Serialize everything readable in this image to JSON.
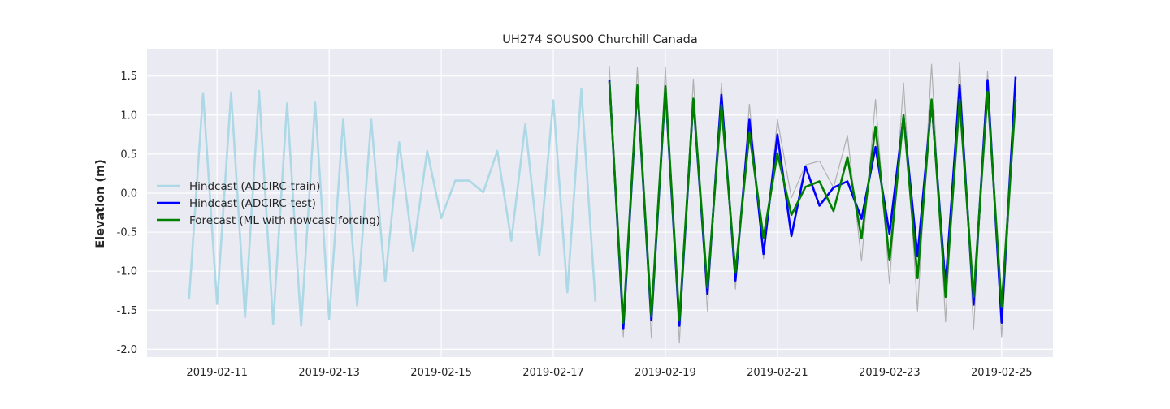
{
  "chart_data": {
    "type": "line",
    "title": "UH274 SOUS00 Churchill Canada",
    "xlabel": "",
    "ylabel": "Elevation (m)",
    "xlim": [
      "2019-02-09T18:00",
      "2019-02-25T22:00"
    ],
    "ylim": [
      -2.1,
      1.85
    ],
    "x_ticks": [
      "2019-02-11",
      "2019-02-13",
      "2019-02-15",
      "2019-02-17",
      "2019-02-19",
      "2019-02-21",
      "2019-02-23",
      "2019-02-25"
    ],
    "y_ticks": [
      -2.0,
      -1.5,
      -1.0,
      -0.5,
      0.0,
      0.5,
      1.0,
      1.5
    ],
    "grid": true,
    "legend_position": "center-left",
    "colors": {
      "background": "#eaeaf2",
      "grid": "#ffffff",
      "train": "#add8e6",
      "test": "#0000ff",
      "forecast": "#008000",
      "observed": "#b0b0b0"
    },
    "series": [
      {
        "key": "train",
        "name": "Hindcast (ADCIRC-train)",
        "color": "#add8e6",
        "x": [
          "2019-02-10T12:00",
          "2019-02-10T18:00",
          "2019-02-11T00:00",
          "2019-02-11T06:00",
          "2019-02-11T12:00",
          "2019-02-11T18:00",
          "2019-02-12T00:00",
          "2019-02-12T06:00",
          "2019-02-12T12:00",
          "2019-02-12T18:00",
          "2019-02-13T00:00",
          "2019-02-13T06:00",
          "2019-02-13T12:00",
          "2019-02-13T18:00",
          "2019-02-14T00:00",
          "2019-02-14T06:00",
          "2019-02-14T12:00",
          "2019-02-14T18:00",
          "2019-02-15T00:00",
          "2019-02-15T06:00",
          "2019-02-15T12:00",
          "2019-02-15T18:00",
          "2019-02-16T00:00",
          "2019-02-16T06:00",
          "2019-02-16T12:00",
          "2019-02-16T18:00",
          "2019-02-17T00:00",
          "2019-02-17T06:00",
          "2019-02-17T12:00",
          "2019-02-17T18:00"
        ],
        "values": [
          -1.36,
          1.28,
          -1.42,
          1.29,
          -1.59,
          1.31,
          -1.68,
          1.15,
          -1.7,
          1.16,
          -1.61,
          0.94,
          -1.44,
          0.94,
          -1.13,
          0.65,
          -0.74,
          0.54,
          -0.32,
          0.16,
          0.16,
          0.01,
          0.54,
          -0.61,
          0.88,
          -0.8,
          1.19,
          -1.27,
          1.33,
          -1.39
        ]
      },
      {
        "key": "observed",
        "name": "",
        "color": "#b0b0b0",
        "x": [
          "2019-02-18T00:00",
          "2019-02-18T06:00",
          "2019-02-18T12:00",
          "2019-02-18T18:00",
          "2019-02-19T00:00",
          "2019-02-19T06:00",
          "2019-02-19T12:00",
          "2019-02-19T18:00",
          "2019-02-20T00:00",
          "2019-02-20T06:00",
          "2019-02-20T12:00",
          "2019-02-20T18:00",
          "2019-02-21T00:00",
          "2019-02-21T06:00",
          "2019-02-21T12:00",
          "2019-02-21T18:00",
          "2019-02-22T00:00",
          "2019-02-22T06:00",
          "2019-02-22T12:00",
          "2019-02-22T18:00",
          "2019-02-23T00:00",
          "2019-02-23T06:00",
          "2019-02-23T12:00",
          "2019-02-23T18:00",
          "2019-02-24T00:00",
          "2019-02-24T06:00",
          "2019-02-24T12:00",
          "2019-02-24T18:00",
          "2019-02-25T00:00",
          "2019-02-25T06:00"
        ],
        "values": [
          1.63,
          -1.84,
          1.61,
          -1.86,
          1.61,
          -1.92,
          1.46,
          -1.51,
          1.41,
          -1.23,
          1.14,
          -0.84,
          0.94,
          -0.06,
          0.36,
          0.41,
          0.07,
          0.74,
          -0.87,
          1.2,
          -1.16,
          1.41,
          -1.51,
          1.65,
          -1.65,
          1.67,
          -1.75,
          1.56,
          -1.84,
          1.2
        ]
      },
      {
        "key": "test",
        "name": "Hindcast (ADCIRC-test)",
        "color": "#0000ff",
        "x": [
          "2019-02-18T00:00",
          "2019-02-18T06:00",
          "2019-02-18T12:00",
          "2019-02-18T18:00",
          "2019-02-19T00:00",
          "2019-02-19T06:00",
          "2019-02-19T12:00",
          "2019-02-19T18:00",
          "2019-02-20T00:00",
          "2019-02-20T06:00",
          "2019-02-20T12:00",
          "2019-02-20T18:00",
          "2019-02-21T00:00",
          "2019-02-21T06:00",
          "2019-02-21T12:00",
          "2019-02-21T18:00",
          "2019-02-22T00:00",
          "2019-02-22T06:00",
          "2019-02-22T12:00",
          "2019-02-22T18:00",
          "2019-02-23T00:00",
          "2019-02-23T06:00",
          "2019-02-23T12:00",
          "2019-02-23T18:00",
          "2019-02-24T00:00",
          "2019-02-24T06:00",
          "2019-02-24T12:00",
          "2019-02-24T18:00",
          "2019-02-25T00:00",
          "2019-02-25T06:00"
        ],
        "values": [
          1.45,
          -1.74,
          1.36,
          -1.63,
          1.34,
          -1.7,
          1.2,
          -1.29,
          1.26,
          -1.12,
          0.94,
          -0.78,
          0.75,
          -0.55,
          0.34,
          -0.16,
          0.07,
          0.15,
          -0.33,
          0.59,
          -0.52,
          0.98,
          -0.81,
          1.17,
          -1.18,
          1.38,
          -1.43,
          1.45,
          -1.66,
          1.49
        ]
      },
      {
        "key": "forecast",
        "name": "Forecast (ML with nowcast forcing)",
        "color": "#008000",
        "x": [
          "2019-02-18T00:00",
          "2019-02-18T06:00",
          "2019-02-18T12:00",
          "2019-02-18T18:00",
          "2019-02-19T00:00",
          "2019-02-19T06:00",
          "2019-02-19T12:00",
          "2019-02-19T18:00",
          "2019-02-20T00:00",
          "2019-02-20T06:00",
          "2019-02-20T12:00",
          "2019-02-20T18:00",
          "2019-02-21T00:00",
          "2019-02-21T06:00",
          "2019-02-21T12:00",
          "2019-02-21T18:00",
          "2019-02-22T00:00",
          "2019-02-22T06:00",
          "2019-02-22T12:00",
          "2019-02-22T18:00",
          "2019-02-23T00:00",
          "2019-02-23T06:00",
          "2019-02-23T12:00",
          "2019-02-23T18:00",
          "2019-02-24T00:00",
          "2019-02-24T06:00",
          "2019-02-24T12:00",
          "2019-02-24T18:00",
          "2019-02-25T00:00",
          "2019-02-25T06:00"
        ],
        "values": [
          1.43,
          -1.66,
          1.38,
          -1.58,
          1.37,
          -1.63,
          1.21,
          -1.21,
          1.13,
          -1.02,
          0.77,
          -0.57,
          0.51,
          -0.28,
          0.08,
          0.15,
          -0.23,
          0.46,
          -0.58,
          0.85,
          -0.86,
          1.0,
          -1.09,
          1.2,
          -1.33,
          1.2,
          -1.33,
          1.3,
          -1.45,
          1.2
        ]
      }
    ]
  }
}
